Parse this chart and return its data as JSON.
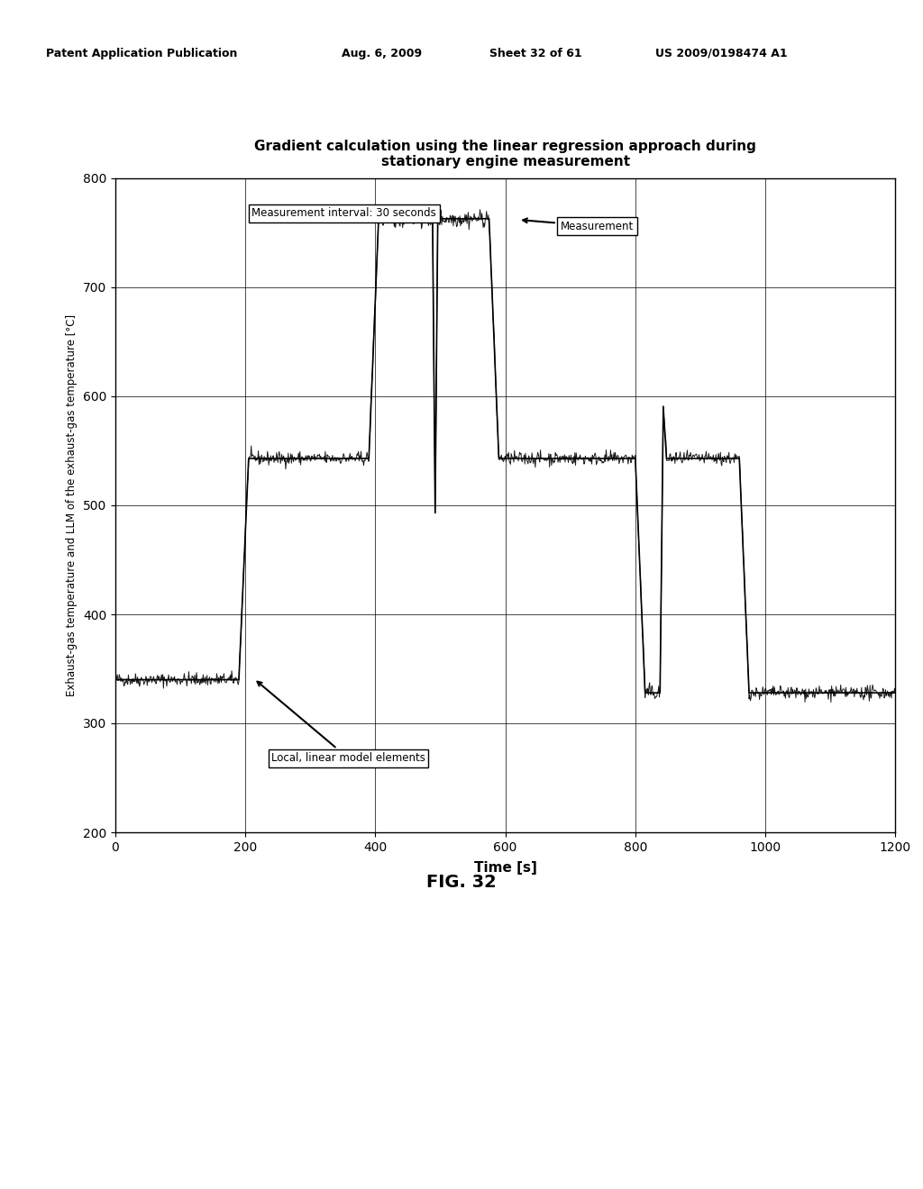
{
  "title_line1": "Gradient calculation using the linear regression approach during",
  "title_line2": "stationary engine measurement",
  "xlabel": "Time [s]",
  "ylabel": "Exhaust-gas temperature and LLM of the exhaust-gas temperature [°C]",
  "xlim": [
    0,
    1200
  ],
  "ylim": [
    200,
    800
  ],
  "xticks": [
    0,
    200,
    400,
    600,
    800,
    1000,
    1200
  ],
  "yticks": [
    200,
    300,
    400,
    500,
    600,
    700,
    800
  ],
  "annotation_interval": "Measurement interval: 30 seconds",
  "annotation_llm": "Local, linear model elements",
  "annotation_meas": "Measurement",
  "patent_header": "Patent Application Publication",
  "patent_date": "Aug. 6, 2009",
  "patent_sheet": "Sheet 32 of 61",
  "patent_number": "US 2009/0198474 A1",
  "fig_label": "FIG. 32",
  "background_color": "#ffffff",
  "line_color": "#000000"
}
